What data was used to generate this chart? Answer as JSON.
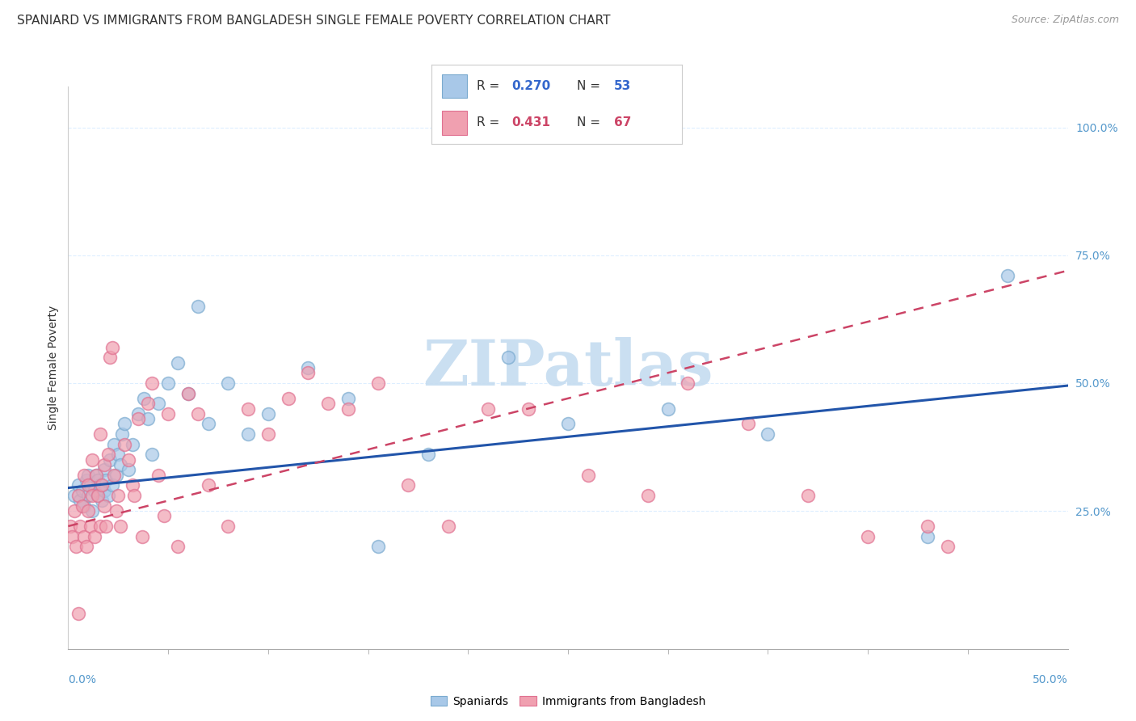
{
  "title": "SPANIARD VS IMMIGRANTS FROM BANGLADESH SINGLE FEMALE POVERTY CORRELATION CHART",
  "source": "Source: ZipAtlas.com",
  "ylabel": "Single Female Poverty",
  "ytick_labels": [
    "100.0%",
    "75.0%",
    "50.0%",
    "25.0%"
  ],
  "ytick_values": [
    1.0,
    0.75,
    0.5,
    0.25
  ],
  "xlim": [
    0.0,
    0.5
  ],
  "ylim": [
    -0.02,
    1.08
  ],
  "legend_blue_r": "0.270",
  "legend_blue_n": "53",
  "legend_pink_r": "0.431",
  "legend_pink_n": "67",
  "legend_label_blue": "Spaniards",
  "legend_label_pink": "Immigrants from Bangladesh",
  "blue_color": "#A8C8E8",
  "pink_color": "#F0A0B0",
  "blue_scatter_edge": "#7AAACF",
  "pink_scatter_edge": "#E07090",
  "blue_line_color": "#2255AA",
  "pink_line_color": "#CC4466",
  "watermark": "ZIPatlas",
  "watermark_color": "#C5DCF0",
  "grid_color": "#DDEEFF",
  "tick_color": "#5599CC",
  "blue_scatter_x": [
    0.003,
    0.005,
    0.006,
    0.007,
    0.008,
    0.009,
    0.01,
    0.01,
    0.011,
    0.012,
    0.013,
    0.014,
    0.015,
    0.015,
    0.016,
    0.017,
    0.018,
    0.018,
    0.019,
    0.02,
    0.021,
    0.022,
    0.023,
    0.024,
    0.025,
    0.026,
    0.027,
    0.028,
    0.03,
    0.032,
    0.035,
    0.038,
    0.04,
    0.042,
    0.045,
    0.05,
    0.055,
    0.06,
    0.065,
    0.07,
    0.08,
    0.09,
    0.1,
    0.12,
    0.14,
    0.155,
    0.18,
    0.22,
    0.25,
    0.3,
    0.35,
    0.43,
    0.47
  ],
  "blue_scatter_y": [
    0.28,
    0.3,
    0.27,
    0.29,
    0.26,
    0.31,
    0.28,
    0.32,
    0.3,
    0.25,
    0.29,
    0.32,
    0.28,
    0.31,
    0.3,
    0.27,
    0.29,
    0.33,
    0.31,
    0.28,
    0.35,
    0.3,
    0.38,
    0.32,
    0.36,
    0.34,
    0.4,
    0.42,
    0.33,
    0.38,
    0.44,
    0.47,
    0.43,
    0.36,
    0.46,
    0.5,
    0.54,
    0.48,
    0.65,
    0.42,
    0.5,
    0.4,
    0.44,
    0.53,
    0.47,
    0.18,
    0.36,
    0.55,
    0.42,
    0.45,
    0.4,
    0.2,
    0.71
  ],
  "pink_scatter_x": [
    0.001,
    0.002,
    0.003,
    0.004,
    0.005,
    0.005,
    0.006,
    0.007,
    0.008,
    0.008,
    0.009,
    0.01,
    0.01,
    0.011,
    0.012,
    0.012,
    0.013,
    0.014,
    0.015,
    0.016,
    0.016,
    0.017,
    0.018,
    0.018,
    0.019,
    0.02,
    0.021,
    0.022,
    0.023,
    0.024,
    0.025,
    0.026,
    0.028,
    0.03,
    0.032,
    0.033,
    0.035,
    0.037,
    0.04,
    0.042,
    0.045,
    0.048,
    0.05,
    0.055,
    0.06,
    0.065,
    0.07,
    0.08,
    0.09,
    0.1,
    0.11,
    0.12,
    0.13,
    0.14,
    0.155,
    0.17,
    0.19,
    0.21,
    0.23,
    0.26,
    0.29,
    0.31,
    0.34,
    0.37,
    0.4,
    0.43,
    0.44
  ],
  "pink_scatter_y": [
    0.22,
    0.2,
    0.25,
    0.18,
    0.28,
    0.05,
    0.22,
    0.26,
    0.2,
    0.32,
    0.18,
    0.3,
    0.25,
    0.22,
    0.28,
    0.35,
    0.2,
    0.32,
    0.28,
    0.22,
    0.4,
    0.3,
    0.26,
    0.34,
    0.22,
    0.36,
    0.55,
    0.57,
    0.32,
    0.25,
    0.28,
    0.22,
    0.38,
    0.35,
    0.3,
    0.28,
    0.43,
    0.2,
    0.46,
    0.5,
    0.32,
    0.24,
    0.44,
    0.18,
    0.48,
    0.44,
    0.3,
    0.22,
    0.45,
    0.4,
    0.47,
    0.52,
    0.46,
    0.45,
    0.5,
    0.3,
    0.22,
    0.45,
    0.45,
    0.32,
    0.28,
    0.5,
    0.42,
    0.28,
    0.2,
    0.22,
    0.18
  ],
  "blue_trendline_x": [
    0.0,
    0.5
  ],
  "blue_trendline_y": [
    0.295,
    0.495
  ],
  "pink_trendline_x": [
    0.0,
    0.5
  ],
  "pink_trendline_y": [
    0.22,
    0.72
  ],
  "title_fontsize": 11,
  "axis_label_fontsize": 10,
  "tick_fontsize": 10,
  "legend_fontsize": 11
}
